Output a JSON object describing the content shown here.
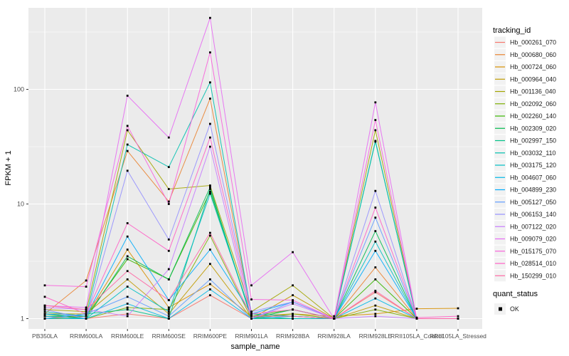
{
  "chart_data": {
    "type": "line",
    "title": "",
    "xlabel": "sample_name",
    "ylabel": "FPKM + 1",
    "y_scale": "log10",
    "ylim": [
      0.82,
      500
    ],
    "grid": "on",
    "legend_position": "right",
    "panel_background": "#EBEBEB",
    "gridline_color": "#FFFFFF",
    "point_marker": "black-square",
    "yticks": [
      {
        "label": "1",
        "value": 1
      },
      {
        "label": "10",
        "value": 10
      },
      {
        "label": "100",
        "value": 100
      }
    ],
    "minor_tick_values": [
      3.1623,
      31.623,
      316.23
    ],
    "categories": [
      "PB350LA",
      "RRIM600LA",
      "RRIM600LE",
      "RRIM600SE",
      "RRIM600PE",
      "RRIM901LA",
      "RRIM928BA",
      "RRIM928LA",
      "RRIM928LE",
      "RRII105LA_Control",
      "RRII105LA_Stressed"
    ],
    "series": [
      {
        "name": "Hb_000261_070",
        "color": "#F8766D",
        "values": [
          1.05,
          1.0,
          1.1,
          1.0,
          1.6,
          1.0,
          1.0,
          1.0,
          1.7,
          1.0,
          1.0
        ]
      },
      {
        "name": "Hb_000680_060",
        "color": "#EA8331",
        "values": [
          1.1,
          2.15,
          29,
          10.5,
          83,
          1.1,
          1.05,
          1.0,
          2.8,
          1.0,
          1.0
        ]
      },
      {
        "name": "Hb_000724_060",
        "color": "#D89000",
        "values": [
          1.0,
          1.05,
          4.0,
          1.25,
          2.0,
          1.05,
          1.1,
          1.05,
          1.1,
          1.22,
          1.23
        ]
      },
      {
        "name": "Hb_000964_040",
        "color": "#C09B00",
        "values": [
          1.1,
          1.1,
          2.2,
          1.1,
          3.0,
          1.0,
          1.6,
          1.0,
          1.3,
          1.0,
          1.0
        ]
      },
      {
        "name": "Hb_001136_040",
        "color": "#A3A500",
        "values": [
          1.2,
          1.15,
          44,
          13.5,
          14.5,
          1.15,
          1.95,
          1.0,
          44,
          1.0,
          1.0
        ]
      },
      {
        "name": "Hb_002092_060",
        "color": "#7CAE00",
        "values": [
          1.0,
          1.0,
          1.25,
          1.2,
          5.3,
          1.0,
          1.1,
          1.0,
          1.2,
          1.0,
          1.0
        ]
      },
      {
        "name": "Hb_002260_140",
        "color": "#39B600",
        "values": [
          1.05,
          1.05,
          3.3,
          2.2,
          12.8,
          1.05,
          1.2,
          1.0,
          2.2,
          1.0,
          1.0
        ]
      },
      {
        "name": "Hb_002309_020",
        "color": "#00BB4E",
        "values": [
          1.1,
          1.0,
          3.5,
          2.2,
          14,
          1.0,
          1.2,
          1.0,
          5.8,
          1.0,
          1.0
        ]
      },
      {
        "name": "Hb_002997_150",
        "color": "#00C087",
        "values": [
          1.0,
          1.1,
          1.2,
          1.0,
          13.5,
          1.0,
          1.0,
          1.0,
          35,
          1.0,
          1.0
        ]
      },
      {
        "name": "Hb_003032_110",
        "color": "#00C0AF",
        "values": [
          1.15,
          1.05,
          33,
          21,
          115,
          1.1,
          1.05,
          1.0,
          35.5,
          1.0,
          1.0
        ]
      },
      {
        "name": "Hb_003175_120",
        "color": "#00BFC4",
        "values": [
          1.0,
          1.0,
          1.9,
          1.15,
          12.3,
          1.05,
          1.0,
          1.0,
          4.7,
          1.0,
          1.0
        ]
      },
      {
        "name": "Hb_004607_060",
        "color": "#00B8E7",
        "values": [
          1.05,
          1.0,
          1.35,
          1.0,
          1.8,
          1.0,
          1.05,
          1.0,
          1.5,
          1.0,
          1.0
        ]
      },
      {
        "name": "Hb_004899_230",
        "color": "#00ACFC",
        "values": [
          1.1,
          1.05,
          5.2,
          1.45,
          4.0,
          1.1,
          1.4,
          1.0,
          3.9,
          1.0,
          1.0
        ]
      },
      {
        "name": "Hb_005127_050",
        "color": "#619CFF",
        "values": [
          1.0,
          1.1,
          1.55,
          1.05,
          2.2,
          1.0,
          1.4,
          1.0,
          7.6,
          1.0,
          1.0
        ]
      },
      {
        "name": "Hb_006153_140",
        "color": "#9590FF",
        "values": [
          1.2,
          1.0,
          19.5,
          4.9,
          50,
          1.15,
          1.4,
          1.0,
          13,
          1.0,
          1.0
        ]
      },
      {
        "name": "Hb_007122_020",
        "color": "#C77CFF",
        "values": [
          1.25,
          1.2,
          1.05,
          2.7,
          31.6,
          1.0,
          1.35,
          1.0,
          1.05,
          1.0,
          1.0
        ]
      },
      {
        "name": "Hb_009079_020",
        "color": "#E76BF3",
        "values": [
          1.3,
          1.25,
          88,
          38,
          420,
          1.95,
          3.8,
          1.0,
          77,
          1.0,
          1.0
        ]
      },
      {
        "name": "Hb_015175_070",
        "color": "#FA62DB",
        "values": [
          1.95,
          1.9,
          48,
          10,
          210,
          1.47,
          1.45,
          1.0,
          54,
          1.0,
          1.0
        ]
      },
      {
        "name": "Hb_028514_010",
        "color": "#FF61C7",
        "values": [
          1.55,
          1.1,
          6.8,
          3.9,
          38,
          1.1,
          1.2,
          1.0,
          9.3,
          1.02,
          1.05
        ]
      },
      {
        "name": "Hb_150299_010",
        "color": "#FF67A4",
        "values": [
          1.3,
          1.2,
          2.6,
          1.45,
          5.6,
          1.05,
          1.05,
          1.0,
          1.75,
          1.0,
          1.0
        ]
      }
    ]
  },
  "legend": {
    "tracking_title": "tracking_id",
    "quant_title": "quant_status",
    "quant_items": [
      {
        "label": "OK",
        "marker": "black-square"
      }
    ]
  }
}
